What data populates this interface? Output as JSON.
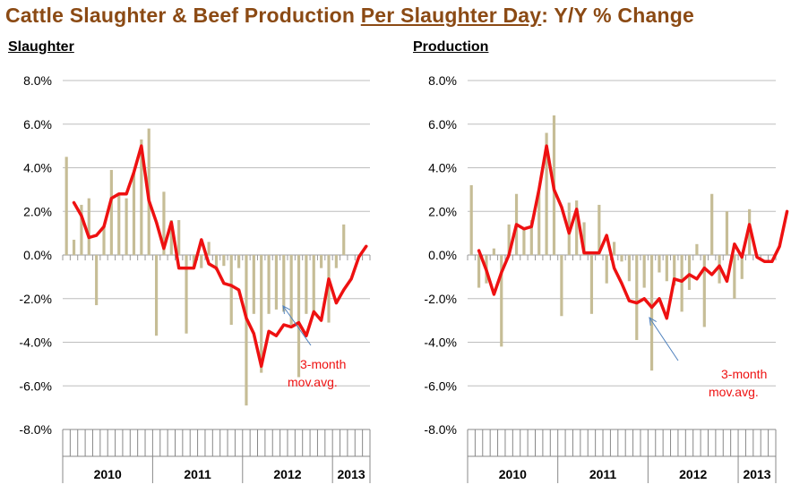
{
  "title": {
    "part1": "Cattle Slaughter & Beef Production ",
    "part2": "Per Slaughter Day",
    "part3": ": Y/Y % Change"
  },
  "chart_data": [
    {
      "type": "bar+line",
      "title": "Slaughter",
      "y_ticks": [
        "8.0%",
        "6.0%",
        "4.0%",
        "2.0%",
        "0.0%",
        "-2.0%",
        "-4.0%",
        "-6.0%",
        "-8.0%"
      ],
      "ylim": [
        -8,
        8
      ],
      "grid": true,
      "x_year_labels": [
        "2010",
        "2011",
        "2012",
        "2013"
      ],
      "months_per_year": 12,
      "total_months": 41,
      "bar_series": {
        "name": "Y/Y % change",
        "color": "#c6bd96",
        "values": [
          4.5,
          0.7,
          2.3,
          2.6,
          -2.3,
          1.3,
          3.9,
          2.8,
          2.6,
          3.8,
          5.3,
          5.8,
          -3.7,
          2.9,
          1.6,
          1.6,
          -3.6,
          -0.6,
          -0.6,
          0.6,
          -0.7,
          -0.5,
          -3.2,
          -0.6,
          -6.9,
          -2.7,
          -5.4,
          -2.7,
          -2.5,
          -2.6,
          -3.2,
          -5.6,
          -2.7,
          -2.7,
          -0.6,
          -3.1,
          -0.6,
          1.4
        ]
      },
      "line_series": {
        "name": "3-month mov.avg.",
        "color": "#ee1111",
        "start_index": 1,
        "values": [
          2.4,
          1.8,
          0.8,
          0.9,
          1.3,
          2.6,
          2.8,
          2.8,
          3.8,
          5.0,
          2.5,
          1.5,
          0.3,
          1.5,
          -0.6,
          -0.6,
          -0.6,
          0.7,
          -0.4,
          -0.6,
          -1.3,
          -1.4,
          -1.6,
          -2.9,
          -3.6,
          -5.1,
          -3.5,
          -3.7,
          -3.2,
          -3.3,
          -3.1,
          -3.7,
          -2.6,
          -3.0,
          -1.1,
          -2.2,
          -1.6,
          -1.1,
          -0.1,
          0.4
        ]
      },
      "annotation": {
        "line1": "3-month",
        "line2": "mov.avg."
      }
    },
    {
      "type": "bar+line",
      "title": "Production",
      "y_ticks": [
        "8.0%",
        "6.0%",
        "4.0%",
        "2.0%",
        "0.0%",
        "-2.0%",
        "-4.0%",
        "-6.0%",
        "-8.0%"
      ],
      "ylim": [
        -8,
        8
      ],
      "grid": true,
      "x_year_labels": [
        "2010",
        "2011",
        "2012",
        "2013"
      ],
      "months_per_year": 12,
      "total_months": 41,
      "bar_series": {
        "name": "Y/Y % change",
        "color": "#c6bd96",
        "values": [
          3.2,
          -1.5,
          -1.3,
          0.3,
          -4.2,
          1.4,
          2.8,
          1.2,
          1.6,
          2.9,
          5.6,
          6.4,
          -2.8,
          2.4,
          2.5,
          1.5,
          -2.7,
          2.3,
          -1.3,
          0.6,
          -0.3,
          -1.2,
          -3.9,
          -1.5,
          -5.3,
          -0.8,
          -1.2,
          -1.4,
          -2.6,
          -1.6,
          0.5,
          -3.3,
          2.8,
          -1.3,
          2.0,
          -2.0,
          -1.1,
          2.1
        ]
      },
      "line_series": {
        "name": "3-month mov.avg.",
        "color": "#ee1111",
        "start_index": 1,
        "values": [
          0.2,
          -0.7,
          -1.8,
          -0.8,
          0.0,
          1.4,
          1.2,
          1.3,
          3.0,
          5.0,
          3.0,
          2.2,
          1.0,
          2.1,
          0.1,
          0.1,
          0.1,
          0.9,
          -0.6,
          -1.3,
          -2.1,
          -2.2,
          -2.0,
          -2.4,
          -2.0,
          -2.9,
          -1.1,
          -1.2,
          -0.9,
          -1.1,
          -0.6,
          -0.9,
          -0.5,
          -1.2,
          0.5,
          -0.1,
          1.4,
          -0.1,
          -0.3,
          -0.3,
          0.4,
          2.0
        ]
      },
      "annotation": {
        "line1": "3-month",
        "line2": "mov.avg."
      }
    }
  ]
}
